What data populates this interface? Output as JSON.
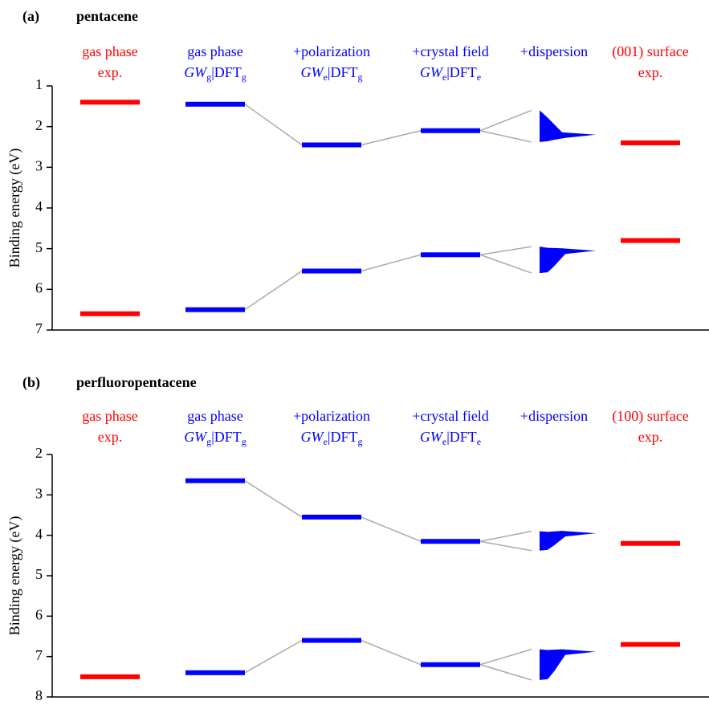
{
  "chart_data": [
    {
      "type": "levels",
      "label": "(a)",
      "title": "pentacene",
      "ylabel": "Binding energy (eV)",
      "ylim": [
        1,
        7
      ],
      "yticks": [
        1,
        2,
        3,
        4,
        5,
        6,
        7
      ],
      "line_color": "#aaaaaa",
      "columns": [
        {
          "header": [
            [
              {
                "text": "gas phase"
              }
            ],
            [
              {
                "text": "exp."
              }
            ]
          ],
          "color": "#ff0000",
          "levels": [
            1.4,
            6.6
          ],
          "connect": false
        },
        {
          "header": [
            [
              {
                "text": "gas phase"
              }
            ],
            [
              {
                "text": "GW",
                "style": "italic"
              },
              {
                "text": "g",
                "style": "sub"
              },
              {
                "text": "|DFT"
              },
              {
                "text": "g",
                "style": "sub"
              }
            ]
          ],
          "color": "#0000ff",
          "levels": [
            1.45,
            6.5
          ],
          "connect": true
        },
        {
          "header": [
            [
              {
                "text": "+polarization"
              }
            ],
            [
              {
                "text": "GW",
                "style": "italic"
              },
              {
                "text": "e",
                "style": "sub"
              },
              {
                "text": "|DFT"
              },
              {
                "text": "g",
                "style": "sub"
              }
            ]
          ],
          "color": "#0000ff",
          "levels": [
            2.45,
            5.55
          ],
          "connect": true
        },
        {
          "header": [
            [
              {
                "text": "+crystal field"
              }
            ],
            [
              {
                "text": "GW",
                "style": "italic"
              },
              {
                "text": "e",
                "style": "sub"
              },
              {
                "text": "|DFT"
              },
              {
                "text": "e",
                "style": "sub"
              }
            ]
          ],
          "color": "#0000ff",
          "levels": [
            2.1,
            5.15
          ],
          "connect": true
        },
        {
          "header": [
            [
              {
                "text": "+dispersion"
              }
            ]
          ],
          "color": "#0000ff",
          "bands": [
            [
              1.6,
              2.38
            ],
            [
              4.95,
              5.6
            ]
          ],
          "peaks": [
            2.2,
            5.05
          ],
          "connect": true
        },
        {
          "header": [
            [
              {
                "text": "(001) surface"
              }
            ],
            [
              {
                "text": "exp."
              }
            ]
          ],
          "color": "#ff0000",
          "levels": [
            2.4,
            4.8
          ],
          "connect": false
        }
      ]
    },
    {
      "type": "levels",
      "label": "(b)",
      "title": "perfluoropentacene",
      "ylabel": "Binding energy (eV)",
      "ylim": [
        2,
        8
      ],
      "yticks": [
        2,
        3,
        4,
        5,
        6,
        7,
        8
      ],
      "line_color": "#aaaaaa",
      "columns": [
        {
          "header": [
            [
              {
                "text": "gas phase"
              }
            ],
            [
              {
                "text": "exp."
              }
            ]
          ],
          "color": "#ff0000",
          "levels": [
            7.5
          ],
          "connect": false
        },
        {
          "header": [
            [
              {
                "text": "gas phase"
              }
            ],
            [
              {
                "text": "GW",
                "style": "italic"
              },
              {
                "text": "g",
                "style": "sub"
              },
              {
                "text": "|DFT"
              },
              {
                "text": "g",
                "style": "sub"
              }
            ]
          ],
          "color": "#0000ff",
          "levels": [
            2.65,
            7.4
          ],
          "connect": true
        },
        {
          "header": [
            [
              {
                "text": "+polarization"
              }
            ],
            [
              {
                "text": "GW",
                "style": "italic"
              },
              {
                "text": "e",
                "style": "sub"
              },
              {
                "text": "|DFT"
              },
              {
                "text": "g",
                "style": "sub"
              }
            ]
          ],
          "color": "#0000ff",
          "levels": [
            3.55,
            6.6
          ],
          "connect": true
        },
        {
          "header": [
            [
              {
                "text": "+crystal field"
              }
            ],
            [
              {
                "text": "GW",
                "style": "italic"
              },
              {
                "text": "e",
                "style": "sub"
              },
              {
                "text": "|DFT"
              },
              {
                "text": "e",
                "style": "sub"
              }
            ]
          ],
          "color": "#0000ff",
          "levels": [
            4.15,
            7.2
          ],
          "connect": true
        },
        {
          "header": [
            [
              {
                "text": "+dispersion"
              }
            ]
          ],
          "color": "#0000ff",
          "bands": [
            [
              3.9,
              4.38
            ],
            [
              6.82,
              7.58
            ]
          ],
          "peaks": [
            3.95,
            6.88
          ],
          "connect": true
        },
        {
          "header": [
            [
              {
                "text": "(100) surface"
              }
            ],
            [
              {
                "text": "exp."
              }
            ]
          ],
          "color": "#ff0000",
          "levels": [
            4.2,
            6.7
          ],
          "connect": false
        }
      ]
    }
  ]
}
